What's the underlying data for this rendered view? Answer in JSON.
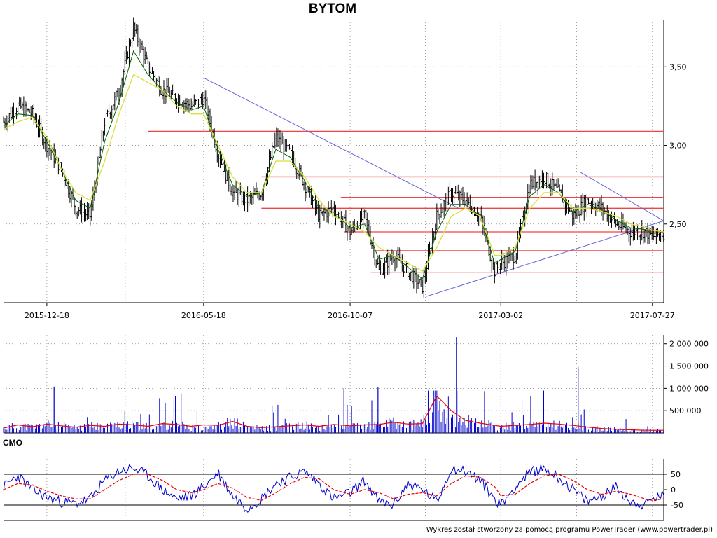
{
  "title": "BYTOM",
  "footer": "Wykres został stworzony za pomocą programu PowerTrader (www.powertrader.pl)",
  "panels": {
    "price_label": "",
    "volume_label": "",
    "cmo_label": "CMO"
  },
  "colors": {
    "price_bar": "#000000",
    "price_ma": "#006400",
    "slow_ma": "#dede3c",
    "support_lines": "#ee4444",
    "trend_lines": "#6666dd",
    "volume_bars": "#0000cc",
    "volume_ma": "#ee0000",
    "cmo_line": "#0000cc",
    "cmo_signal": "#ee0000",
    "grid": "#888888"
  },
  "chart_data": [
    {
      "type": "line",
      "panel": "price",
      "title": "BYTOM",
      "x_tick_labels": [
        "2015-12-18",
        "2016-05-18",
        "2016-10-07",
        "2017-03-02",
        "2017-07-27"
      ],
      "y_tick_labels": [
        "2,50",
        "3,00",
        "3,50"
      ],
      "y_ticks": [
        2.5,
        3.0,
        3.5
      ],
      "ylim": [
        2.0,
        3.8
      ],
      "x_range": [
        "2015-11-06",
        "2017-08-07"
      ],
      "grid": true,
      "series": [
        {
          "style": "ohlc-bars",
          "dates": [
            "2015-11-06",
            "2015-11-20",
            "2015-12-04",
            "2015-12-18",
            "2016-01-01",
            "2016-01-15",
            "2016-01-29",
            "2016-02-12",
            "2016-02-26",
            "2016-03-11",
            "2016-03-25",
            "2016-04-08",
            "2016-04-22",
            "2016-05-06",
            "2016-05-18",
            "2016-06-01",
            "2016-06-15",
            "2016-06-29",
            "2016-07-13",
            "2016-07-27",
            "2016-08-10",
            "2016-08-24",
            "2016-09-07",
            "2016-09-21",
            "2016-10-07",
            "2016-10-21",
            "2016-11-04",
            "2016-11-18",
            "2016-12-02",
            "2016-12-16",
            "2016-12-30",
            "2017-01-13",
            "2017-01-27",
            "2017-02-10",
            "2017-02-24",
            "2017-03-02",
            "2017-03-16",
            "2017-03-30",
            "2017-04-13",
            "2017-04-27",
            "2017-05-11",
            "2017-05-25",
            "2017-06-08",
            "2017-06-22",
            "2017-07-06",
            "2017-07-20",
            "2017-07-27",
            "2017-08-07"
          ],
          "close": [
            3.15,
            3.25,
            3.2,
            3.0,
            2.85,
            2.6,
            2.55,
            3.15,
            3.35,
            3.75,
            3.5,
            3.35,
            3.3,
            3.25,
            3.3,
            2.95,
            2.7,
            2.65,
            2.7,
            3.05,
            2.95,
            2.75,
            2.55,
            2.6,
            2.45,
            2.55,
            2.2,
            2.3,
            2.2,
            2.1,
            2.55,
            2.7,
            2.65,
            2.55,
            2.2,
            2.25,
            2.3,
            2.75,
            2.8,
            2.7,
            2.55,
            2.65,
            2.6,
            2.5,
            2.45,
            2.45,
            2.42,
            2.44
          ]
        },
        {
          "name": "",
          "style": "ma",
          "values": [
            3.1,
            3.15,
            3.18,
            3.05,
            2.85,
            2.7,
            2.65,
            2.9,
            3.2,
            3.45,
            3.4,
            3.35,
            3.25,
            3.2,
            3.2,
            3.0,
            2.8,
            2.7,
            2.7,
            2.9,
            2.9,
            2.8,
            2.65,
            2.55,
            2.5,
            2.45,
            2.35,
            2.3,
            2.25,
            2.2,
            2.35,
            2.55,
            2.6,
            2.55,
            2.3,
            2.3,
            2.35,
            2.6,
            2.7,
            2.7,
            2.6,
            2.6,
            2.58,
            2.55,
            2.5,
            2.48,
            2.46,
            2.45
          ]
        }
      ],
      "horizontal_levels": [
        3.09,
        2.8,
        2.67,
        2.6,
        2.45,
        2.33,
        2.19
      ],
      "trend_lines": [
        {
          "from": [
            "2016-05-18",
            3.43
          ],
          "to": [
            "2017-01-20",
            2.6
          ]
        },
        {
          "from": [
            "2016-12-20",
            2.04
          ],
          "to": [
            "2017-08-07",
            2.52
          ]
        },
        {
          "from": [
            "2017-05-18",
            2.83
          ],
          "to": [
            "2017-08-07",
            2.52
          ]
        }
      ]
    },
    {
      "type": "bar",
      "panel": "volume",
      "y_tick_labels": [
        "500 000",
        "1 000 000",
        "1 500 000",
        "2 000 000"
      ],
      "y_ticks": [
        500000,
        1000000,
        1500000,
        2000000
      ],
      "ylim": [
        0,
        2200000
      ],
      "spikes": [
        {
          "date": "2015-12-25",
          "value": 1040000
        },
        {
          "date": "2016-10-01",
          "value": 1000000
        },
        {
          "date": "2016-11-03",
          "value": 1020000
        },
        {
          "date": "2017-01-18",
          "value": 2150000
        },
        {
          "date": "2017-05-16",
          "value": 1480000
        }
      ],
      "volume_ma": [
        110000,
        180000,
        140000,
        200000,
        160000,
        130000,
        170000,
        150000,
        200000,
        180000,
        150000,
        210000,
        190000,
        150000,
        180000,
        170000,
        260000,
        150000,
        120000,
        140000,
        160000,
        180000,
        150000,
        190000,
        160000,
        180000,
        190000,
        240000,
        200000,
        210000,
        830000,
        500000,
        280000,
        220000,
        170000,
        150000,
        170000,
        190000,
        220000,
        200000,
        170000,
        130000,
        100000,
        80000,
        70000,
        60000,
        60000,
        60000
      ]
    },
    {
      "type": "line",
      "panel": "CMO",
      "title": "CMO",
      "y_tick_labels": [
        "50",
        "0",
        "-50"
      ],
      "y_ticks": [
        50,
        0,
        -50
      ],
      "ylim": [
        -100,
        100
      ],
      "reference_lines": [
        50,
        -50
      ],
      "series": [
        {
          "name": "",
          "values": [
            10,
            45,
            0,
            -25,
            -40,
            -45,
            -30,
            30,
            60,
            70,
            45,
            0,
            -30,
            -20,
            10,
            55,
            -20,
            -60,
            -30,
            20,
            40,
            60,
            20,
            -30,
            -10,
            30,
            -40,
            -50,
            20,
            0,
            -40,
            70,
            60,
            30,
            -30,
            -50,
            10,
            55,
            70,
            40,
            0,
            -40,
            -20,
            10,
            -40,
            -50,
            -30,
            -20
          ]
        },
        {
          "name": "",
          "values": [
            0,
            20,
            15,
            -5,
            -20,
            -30,
            -30,
            0,
            30,
            50,
            50,
            30,
            0,
            -10,
            0,
            20,
            5,
            -25,
            -35,
            -10,
            20,
            40,
            35,
            0,
            -15,
            0,
            -10,
            -30,
            -15,
            -10,
            -20,
            20,
            45,
            40,
            10,
            -20,
            -15,
            20,
            45,
            50,
            30,
            0,
            -15,
            -5,
            -15,
            -30,
            -35,
            -30
          ]
        }
      ]
    }
  ]
}
